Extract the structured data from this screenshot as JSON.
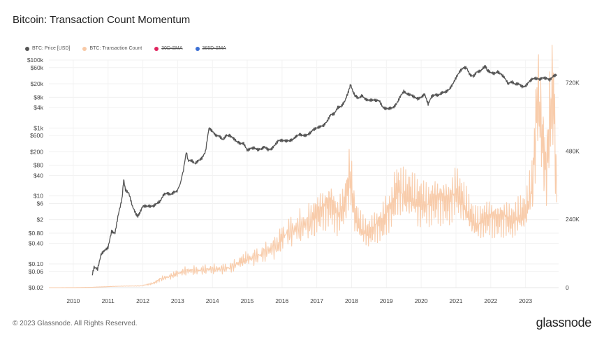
{
  "title": "Bitcoin: Transaction Count Momentum",
  "legend": [
    {
      "label": "BTC: Price [USD]",
      "color": "#555555",
      "active": true
    },
    {
      "label": "BTC: Transaction Count",
      "color": "#f8c9a6",
      "active": true
    },
    {
      "label": "30D-SMA",
      "color": "#e0245e",
      "active": false
    },
    {
      "label": "365D-SMA",
      "color": "#3b6fd4",
      "active": false
    }
  ],
  "footer": {
    "copyright": "© 2023 Glassnode. All Rights Reserved.",
    "brand": "glassnode"
  },
  "chart_data": {
    "type": "line",
    "x_ticks": [
      "2010",
      "2011",
      "2012",
      "2013",
      "2014",
      "2015",
      "2016",
      "2017",
      "2018",
      "2019",
      "2020",
      "2021",
      "2022",
      "2023"
    ],
    "y_left_ticks": [
      "$100k",
      "$60k",
      "$20k",
      "$8k",
      "$4k",
      "$1k",
      "$600",
      "$200",
      "$80",
      "$40",
      "$10",
      "$6",
      "$2",
      "$0.80",
      "$0.40",
      "$0.10",
      "$0.06",
      "$0.02"
    ],
    "y_left_scale": "log",
    "y_left_range": [
      0.02,
      100000
    ],
    "y_right_ticks": [
      "720K",
      "480K",
      "240K",
      "0"
    ],
    "y_right_range": [
      0,
      800000
    ],
    "x_range": [
      2009.3,
      2023.95
    ],
    "grid": true,
    "legend_position": "top-left",
    "series": [
      {
        "name": "BTC: Price [USD]",
        "axis": "left",
        "color": "#555555",
        "points": [
          [
            2010.55,
            0.05
          ],
          [
            2010.6,
            0.08
          ],
          [
            2010.7,
            0.07
          ],
          [
            2010.8,
            0.19
          ],
          [
            2010.9,
            0.25
          ],
          [
            2011.0,
            0.3
          ],
          [
            2011.1,
            0.9
          ],
          [
            2011.2,
            0.8
          ],
          [
            2011.3,
            3
          ],
          [
            2011.4,
            8
          ],
          [
            2011.45,
            30
          ],
          [
            2011.5,
            15
          ],
          [
            2011.6,
            12
          ],
          [
            2011.7,
            5
          ],
          [
            2011.8,
            3
          ],
          [
            2011.85,
            2.5
          ],
          [
            2011.9,
            3
          ],
          [
            2012.0,
            5
          ],
          [
            2012.1,
            5
          ],
          [
            2012.2,
            5
          ],
          [
            2012.3,
            5
          ],
          [
            2012.4,
            6
          ],
          [
            2012.5,
            7
          ],
          [
            2012.6,
            11
          ],
          [
            2012.7,
            12
          ],
          [
            2012.8,
            11
          ],
          [
            2012.9,
            13
          ],
          [
            2013.0,
            14
          ],
          [
            2013.15,
            45
          ],
          [
            2013.25,
            200
          ],
          [
            2013.3,
            110
          ],
          [
            2013.4,
            110
          ],
          [
            2013.5,
            90
          ],
          [
            2013.6,
            110
          ],
          [
            2013.7,
            130
          ],
          [
            2013.8,
            200
          ],
          [
            2013.9,
            1000
          ],
          [
            2014.0,
            800
          ],
          [
            2014.1,
            600
          ],
          [
            2014.2,
            580
          ],
          [
            2014.3,
            450
          ],
          [
            2014.4,
            600
          ],
          [
            2014.5,
            600
          ],
          [
            2014.6,
            500
          ],
          [
            2014.7,
            400
          ],
          [
            2014.8,
            350
          ],
          [
            2014.9,
            350
          ],
          [
            2015.0,
            220
          ],
          [
            2015.1,
            250
          ],
          [
            2015.2,
            260
          ],
          [
            2015.3,
            230
          ],
          [
            2015.4,
            240
          ],
          [
            2015.5,
            280
          ],
          [
            2015.6,
            230
          ],
          [
            2015.7,
            240
          ],
          [
            2015.8,
            320
          ],
          [
            2015.9,
            430
          ],
          [
            2016.0,
            430
          ],
          [
            2016.1,
            420
          ],
          [
            2016.2,
            420
          ],
          [
            2016.3,
            450
          ],
          [
            2016.4,
            560
          ],
          [
            2016.5,
            650
          ],
          [
            2016.6,
            600
          ],
          [
            2016.7,
            610
          ],
          [
            2016.8,
            700
          ],
          [
            2016.9,
            900
          ],
          [
            2017.0,
            1000
          ],
          [
            2017.1,
            1100
          ],
          [
            2017.2,
            1200
          ],
          [
            2017.3,
            1600
          ],
          [
            2017.4,
            2500
          ],
          [
            2017.5,
            2600
          ],
          [
            2017.6,
            4000
          ],
          [
            2017.7,
            4300
          ],
          [
            2017.8,
            6000
          ],
          [
            2017.9,
            11000
          ],
          [
            2017.97,
            19000
          ],
          [
            2018.05,
            11000
          ],
          [
            2018.1,
            9000
          ],
          [
            2018.2,
            7500
          ],
          [
            2018.3,
            9000
          ],
          [
            2018.4,
            7000
          ],
          [
            2018.5,
            6500
          ],
          [
            2018.6,
            6700
          ],
          [
            2018.7,
            6500
          ],
          [
            2018.8,
            6300
          ],
          [
            2018.9,
            4000
          ],
          [
            2019.0,
            3700
          ],
          [
            2019.1,
            3800
          ],
          [
            2019.2,
            4000
          ],
          [
            2019.3,
            5300
          ],
          [
            2019.4,
            8500
          ],
          [
            2019.5,
            12000
          ],
          [
            2019.6,
            10000
          ],
          [
            2019.7,
            9500
          ],
          [
            2019.8,
            8200
          ],
          [
            2019.9,
            7200
          ],
          [
            2020.0,
            8000
          ],
          [
            2020.1,
            10000
          ],
          [
            2020.2,
            5000
          ],
          [
            2020.3,
            8500
          ],
          [
            2020.4,
            9500
          ],
          [
            2020.5,
            9200
          ],
          [
            2020.6,
            11000
          ],
          [
            2020.7,
            11500
          ],
          [
            2020.8,
            13500
          ],
          [
            2020.9,
            19000
          ],
          [
            2021.0,
            30000
          ],
          [
            2021.1,
            45000
          ],
          [
            2021.2,
            58000
          ],
          [
            2021.3,
            60000
          ],
          [
            2021.4,
            37000
          ],
          [
            2021.5,
            33000
          ],
          [
            2021.6,
            45000
          ],
          [
            2021.7,
            47000
          ],
          [
            2021.8,
            61000
          ],
          [
            2021.85,
            65000
          ],
          [
            2021.9,
            50000
          ],
          [
            2022.0,
            43000
          ],
          [
            2022.1,
            40000
          ],
          [
            2022.2,
            45000
          ],
          [
            2022.3,
            38000
          ],
          [
            2022.4,
            30000
          ],
          [
            2022.5,
            20000
          ],
          [
            2022.6,
            23000
          ],
          [
            2022.7,
            19500
          ],
          [
            2022.8,
            20000
          ],
          [
            2022.9,
            16500
          ],
          [
            2023.0,
            17000
          ],
          [
            2023.1,
            23000
          ],
          [
            2023.2,
            28000
          ],
          [
            2023.3,
            29000
          ],
          [
            2023.4,
            27000
          ],
          [
            2023.5,
            30000
          ],
          [
            2023.6,
            29000
          ],
          [
            2023.7,
            26000
          ],
          [
            2023.8,
            34000
          ],
          [
            2023.9,
            37000
          ]
        ]
      },
      {
        "name": "BTC: Transaction Count",
        "axis": "right",
        "color": "#f8c9a6",
        "points": [
          [
            2009.3,
            0
          ],
          [
            2010.0,
            200
          ],
          [
            2010.5,
            1000
          ],
          [
            2011.0,
            3000
          ],
          [
            2011.5,
            6000
          ],
          [
            2012.0,
            8000
          ],
          [
            2012.3,
            15000
          ],
          [
            2012.5,
            30000
          ],
          [
            2012.8,
            40000
          ],
          [
            2013.0,
            50000
          ],
          [
            2013.3,
            60000
          ],
          [
            2013.6,
            60000
          ],
          [
            2013.9,
            65000
          ],
          [
            2014.2,
            65000
          ],
          [
            2014.5,
            70000
          ],
          [
            2014.8,
            90000
          ],
          [
            2015.0,
            100000
          ],
          [
            2015.3,
            110000
          ],
          [
            2015.6,
            130000
          ],
          [
            2015.9,
            150000
          ],
          [
            2016.0,
            180000
          ],
          [
            2016.3,
            200000
          ],
          [
            2016.6,
            220000
          ],
          [
            2016.9,
            240000
          ],
          [
            2017.0,
            260000
          ],
          [
            2017.2,
            280000
          ],
          [
            2017.4,
            300000
          ],
          [
            2017.6,
            250000
          ],
          [
            2017.8,
            290000
          ],
          [
            2017.95,
            400000
          ],
          [
            2018.1,
            250000
          ],
          [
            2018.3,
            200000
          ],
          [
            2018.5,
            190000
          ],
          [
            2018.7,
            220000
          ],
          [
            2018.9,
            230000
          ],
          [
            2019.0,
            260000
          ],
          [
            2019.2,
            300000
          ],
          [
            2019.3,
            350000
          ],
          [
            2019.5,
            330000
          ],
          [
            2019.7,
            320000
          ],
          [
            2019.9,
            300000
          ],
          [
            2020.0,
            300000
          ],
          [
            2020.2,
            290000
          ],
          [
            2020.4,
            310000
          ],
          [
            2020.6,
            310000
          ],
          [
            2020.8,
            300000
          ],
          [
            2021.0,
            340000
          ],
          [
            2021.2,
            300000
          ],
          [
            2021.4,
            250000
          ],
          [
            2021.6,
            220000
          ],
          [
            2021.8,
            240000
          ],
          [
            2022.0,
            250000
          ],
          [
            2022.2,
            240000
          ],
          [
            2022.4,
            250000
          ],
          [
            2022.6,
            230000
          ],
          [
            2022.8,
            250000
          ],
          [
            2023.0,
            260000
          ],
          [
            2023.2,
            360000
          ],
          [
            2023.35,
            680000
          ],
          [
            2023.5,
            500000
          ],
          [
            2023.6,
            400000
          ],
          [
            2023.7,
            600000
          ],
          [
            2023.8,
            700000
          ],
          [
            2023.9,
            300000
          ]
        ]
      }
    ]
  }
}
